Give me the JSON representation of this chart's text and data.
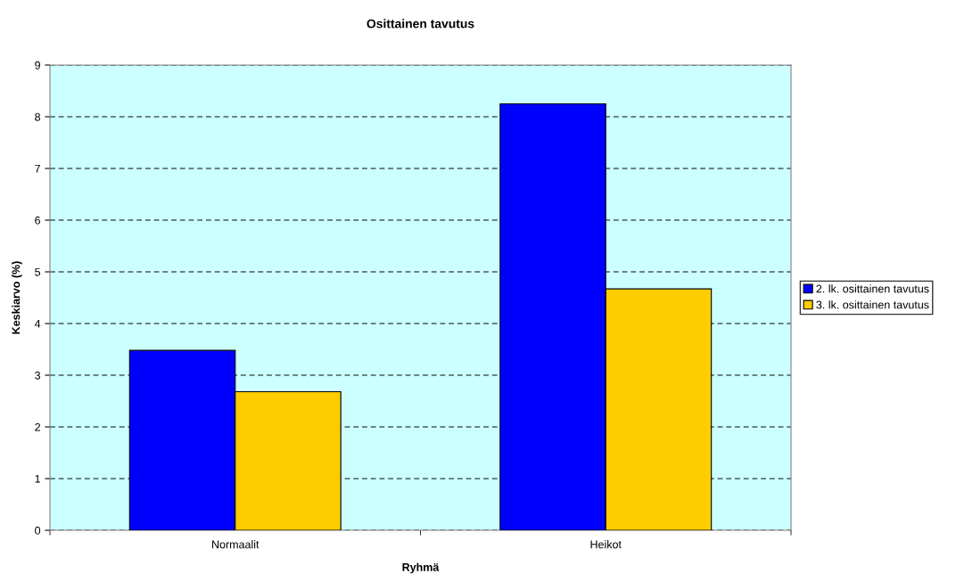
{
  "chart_data": {
    "type": "bar",
    "title": "Osittainen tavutus",
    "xlabel": "Ryhmä",
    "ylabel": "Keskiarvo (%)",
    "categories": [
      "Normaalit",
      "Heikot"
    ],
    "series": [
      {
        "name": "2. lk. osittainen tavutus",
        "color": "#0000ff",
        "values": [
          3.48,
          8.25
        ]
      },
      {
        "name": "3. lk. osittainen tavutus",
        "color": "#ffcc00",
        "values": [
          2.68,
          4.67
        ]
      }
    ],
    "ylim": [
      0,
      9
    ],
    "yticks": [
      0,
      1,
      2,
      3,
      4,
      5,
      6,
      7,
      8,
      9
    ],
    "grid": "y",
    "legend": "right"
  }
}
